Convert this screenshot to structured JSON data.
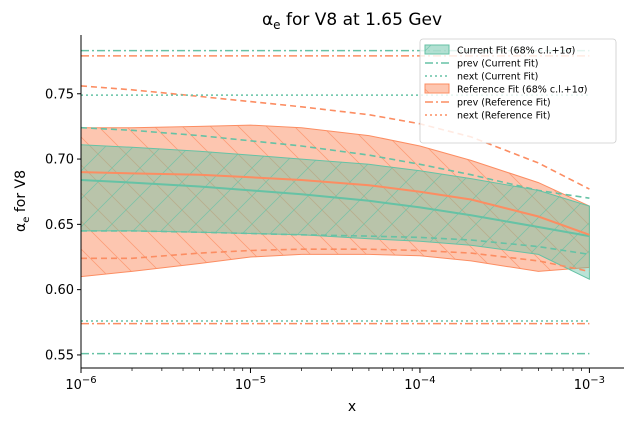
{
  "chart_data": {
    "type": "line",
    "title_main": "α",
    "title_sub": "e",
    "title_rest": " for V8 at 1.65 Gev",
    "xlabel": "x",
    "ylabel_main": "α",
    "ylabel_sub": "e",
    "ylabel_rest": " for V8",
    "x_scale": "log",
    "xlim": [
      1e-06,
      0.0016
    ],
    "ylim": [
      0.54,
      0.795
    ],
    "x_ticks": [
      {
        "value": 1e-06,
        "base": "10",
        "exp": "−6"
      },
      {
        "value": 1e-05,
        "base": "10",
        "exp": "−5"
      },
      {
        "value": 0.0001,
        "base": "10",
        "exp": "−4"
      },
      {
        "value": 0.001,
        "base": "10",
        "exp": "−3"
      }
    ],
    "y_ticks": [
      {
        "value": 0.55,
        "label": "0.55"
      },
      {
        "value": 0.6,
        "label": "0.60"
      },
      {
        "value": 0.65,
        "label": "0.65"
      },
      {
        "value": 0.7,
        "label": "0.70"
      },
      {
        "value": 0.75,
        "label": "0.75"
      }
    ],
    "x": [
      1e-06,
      2e-06,
      5e-06,
      1e-05,
      2e-05,
      5e-05,
      0.0001,
      0.0002,
      0.0005,
      0.001
    ],
    "legend_position": "top-right",
    "colors": {
      "current": "#66c2a5",
      "reference": "#fc8d62",
      "overlap": "#c9a98d"
    },
    "series": [
      {
        "name": "Current Fit (68% c.l.+1σ)",
        "kind": "band",
        "color": "#66c2a5",
        "central": [
          0.684,
          0.682,
          0.679,
          0.676,
          0.673,
          0.668,
          0.663,
          0.657,
          0.648,
          0.641
        ],
        "upper": [
          0.711,
          0.709,
          0.706,
          0.703,
          0.7,
          0.696,
          0.691,
          0.685,
          0.676,
          0.664
        ],
        "lower": [
          0.645,
          0.645,
          0.644,
          0.643,
          0.642,
          0.639,
          0.637,
          0.634,
          0.627,
          0.608
        ]
      },
      {
        "name": "prev (Current Fit)",
        "kind": "dashdot",
        "color": "#66c2a5",
        "levels": [
          0.783,
          0.551
        ]
      },
      {
        "name": "next (Current Fit)",
        "kind": "dotted",
        "color": "#66c2a5",
        "levels": [
          0.749,
          0.576
        ]
      },
      {
        "name": "Reference Fit (68% c.l.+1σ)",
        "kind": "band",
        "color": "#fc8d62",
        "central": [
          0.69,
          0.689,
          0.688,
          0.686,
          0.684,
          0.68,
          0.675,
          0.669,
          0.656,
          0.642
        ],
        "upper": [
          0.724,
          0.724,
          0.725,
          0.726,
          0.724,
          0.718,
          0.71,
          0.699,
          0.682,
          0.664
        ],
        "lower": [
          0.61,
          0.614,
          0.62,
          0.625,
          0.627,
          0.627,
          0.626,
          0.622,
          0.614,
          0.617
        ]
      },
      {
        "name": "prev (Reference Fit)",
        "kind": "dashdot",
        "color": "#fc8d62",
        "levels": [
          0.779,
          0.574
        ]
      },
      {
        "name": "next (Reference Fit)",
        "kind": "dotted",
        "color": "#fc8d62",
        "levels": []
      }
    ],
    "dashed_lines": [
      {
        "color": "#66c2a5",
        "y": [
          0.724,
          0.722,
          0.718,
          0.714,
          0.71,
          0.703,
          0.696,
          0.688,
          0.676,
          0.67
        ]
      },
      {
        "color": "#66c2a5",
        "y": [
          0.645,
          0.645,
          0.644,
          0.643,
          0.642,
          0.641,
          0.64,
          0.638,
          0.633,
          0.627
        ]
      },
      {
        "color": "#fc8d62",
        "y": [
          0.756,
          0.753,
          0.748,
          0.744,
          0.74,
          0.734,
          0.727,
          0.717,
          0.697,
          0.677
        ]
      },
      {
        "color": "#fc8d62",
        "y": [
          0.624,
          0.624,
          0.628,
          0.63,
          0.631,
          0.631,
          0.63,
          0.628,
          0.622,
          0.614
        ]
      }
    ]
  }
}
